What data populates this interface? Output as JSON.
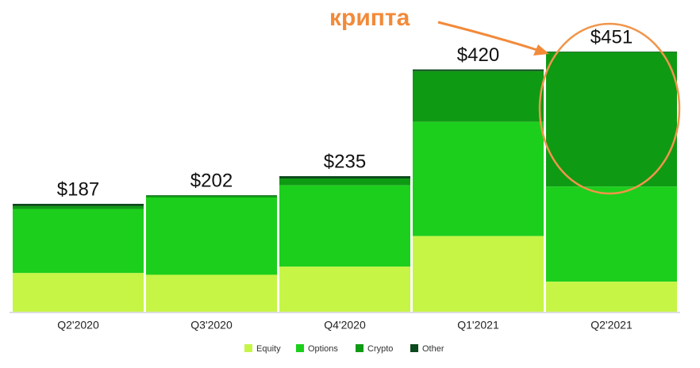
{
  "chart_data": {
    "type": "stacked-bar",
    "annotation": "крипта",
    "categories": [
      "Q2'2020",
      "Q3'2020",
      "Q4'2020",
      "Q1'2021",
      "Q2'2021"
    ],
    "series": [
      {
        "name": "Equity",
        "color": "#c6f545",
        "values": [
          67,
          64,
          78,
          131,
          52
        ]
      },
      {
        "name": "Options",
        "color": "#1ccf1c",
        "values": [
          111,
          134,
          141,
          198,
          165
        ]
      },
      {
        "name": "Crypto",
        "color": "#0f9a14",
        "values": [
          5,
          3,
          12,
          88,
          233
        ]
      },
      {
        "name": "Other",
        "color": "#0b4a1c",
        "values": [
          4,
          1,
          4,
          3,
          1
        ]
      }
    ],
    "totals": [
      187,
      202,
      235,
      420,
      451
    ],
    "total_labels": [
      "$187",
      "$202",
      "$235",
      "$420",
      "$451"
    ]
  }
}
